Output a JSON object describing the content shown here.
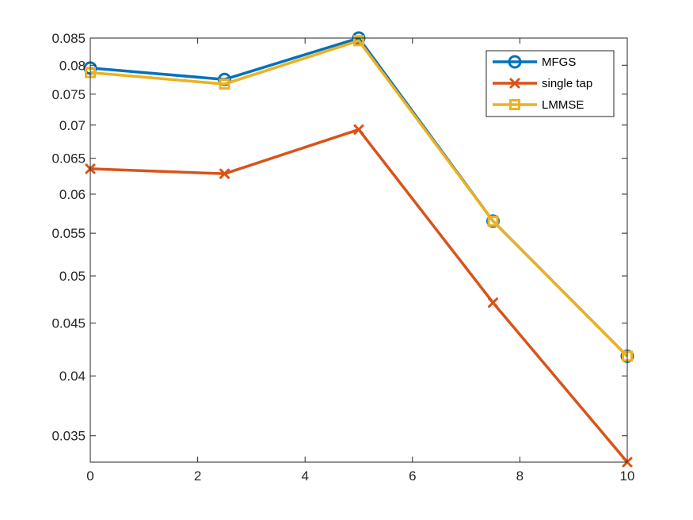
{
  "chart_data": {
    "type": "line",
    "title": "",
    "xlabel": "",
    "ylabel": "",
    "xlim": [
      0,
      10
    ],
    "ylim": [
      0.033,
      0.085
    ],
    "yscale": "log",
    "grid": false,
    "legend_position": "top-right",
    "x": [
      0,
      2.5,
      5,
      7.5,
      10
    ],
    "x_ticks": [
      0,
      2,
      4,
      6,
      8,
      10
    ],
    "x_tick_labels": [
      "0",
      "2",
      "4",
      "6",
      "8",
      "10"
    ],
    "y_ticks": [
      0.035,
      0.04,
      0.045,
      0.05,
      0.055,
      0.06,
      0.065,
      0.07,
      0.075,
      0.08,
      0.085
    ],
    "y_tick_labels": [
      "0.035",
      "0.04",
      "0.045",
      "0.05",
      "0.055",
      "0.06",
      "0.065",
      "0.07",
      "0.075",
      "0.08",
      "0.085"
    ],
    "series": [
      {
        "name": "MFGS",
        "marker": "circle",
        "color": "#0072BD",
        "values": [
          0.0795,
          0.0775,
          0.085,
          0.0565,
          0.0418
        ]
      },
      {
        "name": "single tap",
        "marker": "x",
        "color": "#D95319",
        "values": [
          0.0635,
          0.0628,
          0.0693,
          0.0471,
          0.033
        ]
      },
      {
        "name": "LMMSE",
        "marker": "square",
        "color": "#EDB120",
        "values": [
          0.0787,
          0.0767,
          0.0845,
          0.0565,
          0.0418
        ]
      }
    ]
  }
}
